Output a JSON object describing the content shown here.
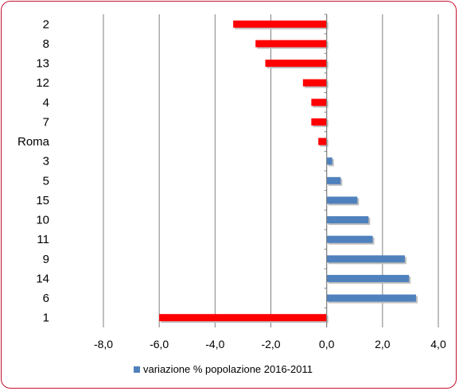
{
  "chart_data": {
    "type": "bar",
    "orientation": "horizontal",
    "categories": [
      "2",
      "8",
      "13",
      "12",
      "4",
      "7",
      "Roma",
      "3",
      "5",
      "15",
      "10",
      "11",
      "9",
      "14",
      "6",
      "1"
    ],
    "values": [
      -3.35,
      -2.55,
      -2.2,
      -0.85,
      -0.55,
      -0.55,
      -0.3,
      0.2,
      0.5,
      1.1,
      1.5,
      1.65,
      2.8,
      2.95,
      3.2,
      -6.0
    ],
    "xlim": [
      -8.0,
      4.0
    ],
    "x_ticks": [
      "-8,0",
      "-6,0",
      "-4,0",
      "-2,0",
      "0,0",
      "2,0",
      "4,0"
    ],
    "grid": "vertical",
    "legend": {
      "position": "bottom",
      "entries": [
        {
          "label": "variazione % popolazione 2016-2011",
          "color": "#4f81bd"
        }
      ]
    },
    "colors": {
      "negative": "#ff0000",
      "positive": "#4f81bd"
    }
  }
}
